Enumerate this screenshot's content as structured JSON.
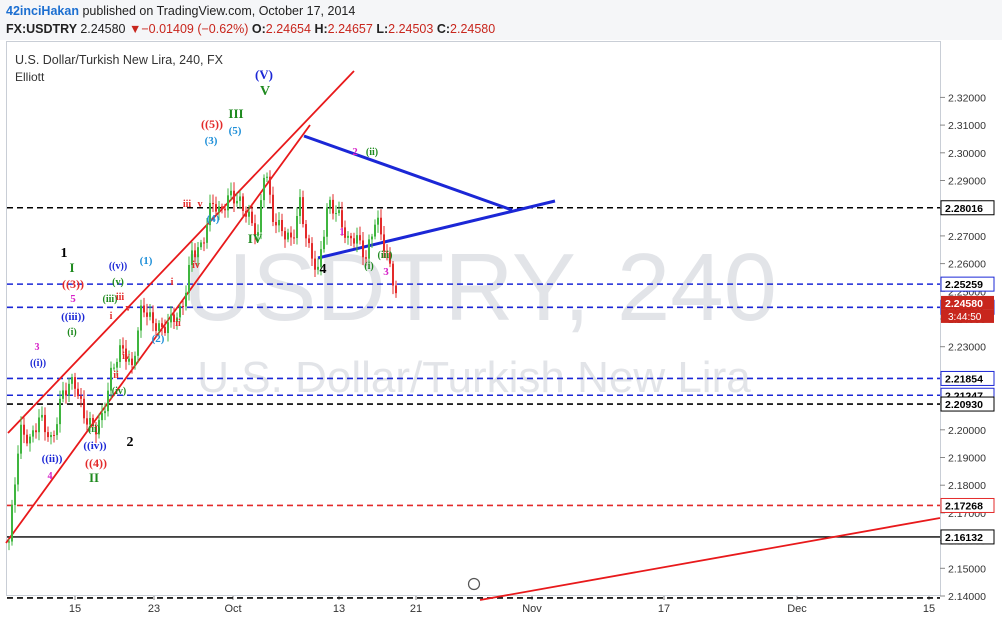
{
  "header": {
    "author": "42inciHakan",
    "published": " published on TradingView.com, October 17, 2014",
    "symbol": "FX:USDTRY",
    "last": "2.24580",
    "change": "−0.01409 (−0.62%)",
    "o_label": "O:",
    "o": "2.24654",
    "h_label": "H:",
    "h": "2.24657",
    "l_label": "L:",
    "l": "2.24503",
    "c_label": "C:",
    "c": "2.24580"
  },
  "chart_title": "U.S. Dollar/Turkish New Lira, 240, FX",
  "study": "Elliott",
  "watermark": {
    "big": "USDTRY, 240",
    "small": "U.S. Dollar/Turkish New Lira"
  },
  "colors": {
    "up": "#3fb53f",
    "down": "#e32a2a",
    "channel": "#e8191b",
    "triangle": "#1b27d6",
    "price_axis_bg": "#ffffff"
  },
  "chart_data": {
    "type": "candlestick",
    "yaxis": {
      "ticks": [
        "2.14000",
        "2.15000",
        "2.16000",
        "2.17000",
        "2.18000",
        "2.19000",
        "2.20000",
        "2.21000",
        "2.22000",
        "2.23000",
        "2.24000",
        "2.25000",
        "2.26000",
        "2.27000",
        "2.28000",
        "2.29000",
        "2.30000",
        "2.31000",
        "2.32000"
      ],
      "range": [
        2.134,
        2.3285
      ]
    },
    "xaxis": {
      "ticks": [
        "15",
        "23",
        "Oct",
        "13",
        "21",
        "Nov",
        "17",
        "Dec",
        "15"
      ]
    },
    "hlines": [
      {
        "value": 2.28016,
        "label": "2.28016",
        "color": "#000000",
        "style": "dashed"
      },
      {
        "value": 2.25259,
        "label": "2.25259",
        "color": "#1b27d6",
        "style": "dashed"
      },
      {
        "value": 2.24423,
        "label": "2.24423",
        "color": "#1b27d6",
        "style": "dashed"
      },
      {
        "value": 2.21854,
        "label": "2.21854",
        "color": "#1b27d6",
        "style": "dashed"
      },
      {
        "value": 2.21247,
        "label": "2.21247",
        "color": "#1b27d6",
        "style": "dashed"
      },
      {
        "value": 2.2093,
        "label": "2.20930",
        "color": "#000000",
        "style": "dashed"
      },
      {
        "value": 2.17268,
        "label": "2.17268",
        "color": "#e32a2a",
        "style": "dashed"
      },
      {
        "value": 2.16132,
        "label": "2.16132",
        "color": "#000000",
        "style": "solid"
      },
      {
        "value": 2.1393,
        "label": "",
        "color": "#000000",
        "style": "dashed"
      }
    ],
    "current_price": {
      "label": "2.24580",
      "value": 2.2458
    },
    "countdown": "3:44:50",
    "wave_labels": [
      {
        "text": "(V)",
        "color": "#1b27d6"
      },
      {
        "text": "V",
        "color": "#1f8a1f"
      },
      {
        "text": "III",
        "color": "#1f8a1f"
      },
      {
        "text": "((5))",
        "color": "#e32a2a"
      },
      {
        "text": "(5)",
        "color": "#1e8fd8"
      },
      {
        "text": "(3)",
        "color": "#1e8fd8"
      },
      {
        "text": "iii",
        "color": "#e32a2a"
      },
      {
        "text": "v",
        "color": "#e32a2a"
      },
      {
        "text": "(4)",
        "color": "#1e8fd8"
      },
      {
        "text": "iv",
        "color": "#e32a2a"
      },
      {
        "text": "IV",
        "color": "#1f8a1f"
      },
      {
        "text": "1",
        "color": "#000000"
      },
      {
        "text": "I",
        "color": "#1f8a1f"
      },
      {
        "text": "((3))",
        "color": "#e32a2a"
      },
      {
        "text": "5",
        "color": "#d620c8"
      },
      {
        "text": "((iii))",
        "color": "#1b27d6"
      },
      {
        "text": "(i)",
        "color": "#1f8a1f"
      },
      {
        "text": "3",
        "color": "#d620c8"
      },
      {
        "text": "((i))",
        "color": "#1b27d6"
      },
      {
        "text": "((v))",
        "color": "#1b27d6"
      },
      {
        "text": "(v)",
        "color": "#1f8a1f"
      },
      {
        "text": "(1)",
        "color": "#1e8fd8"
      },
      {
        "text": "(iii)",
        "color": "#1f8a1f"
      },
      {
        "text": "iii",
        "color": "#e32a2a"
      },
      {
        "text": "i",
        "color": "#e32a2a"
      },
      {
        "text": "v",
        "color": "#e32a2a"
      },
      {
        "text": "i",
        "color": "#e32a2a"
      },
      {
        "text": "ii",
        "color": "#e32a2a"
      },
      {
        "text": "(2)",
        "color": "#1e8fd8"
      },
      {
        "text": "iv",
        "color": "#e32a2a"
      },
      {
        "text": "ii",
        "color": "#e32a2a"
      },
      {
        "text": "(iv)",
        "color": "#1f8a1f"
      },
      {
        "text": "(ii)",
        "color": "#1f8a1f"
      },
      {
        "text": "((iv))",
        "color": "#1b27d6"
      },
      {
        "text": "((4))",
        "color": "#e32a2a"
      },
      {
        "text": "II",
        "color": "#1f8a1f"
      },
      {
        "text": "((ii))",
        "color": "#1b27d6"
      },
      {
        "text": "4",
        "color": "#d620c8"
      },
      {
        "text": "2",
        "color": "#000000"
      },
      {
        "text": "2",
        "color": "#d620c8"
      },
      {
        "text": "(ii)",
        "color": "#1f8a1f"
      },
      {
        "text": "1",
        "color": "#d620c8"
      },
      {
        "text": "4",
        "color": "#000000"
      },
      {
        "text": "(i)",
        "color": "#1f8a1f"
      },
      {
        "text": "(iii)",
        "color": "#1f8a1f"
      },
      {
        "text": "3",
        "color": "#d620c8"
      }
    ]
  }
}
